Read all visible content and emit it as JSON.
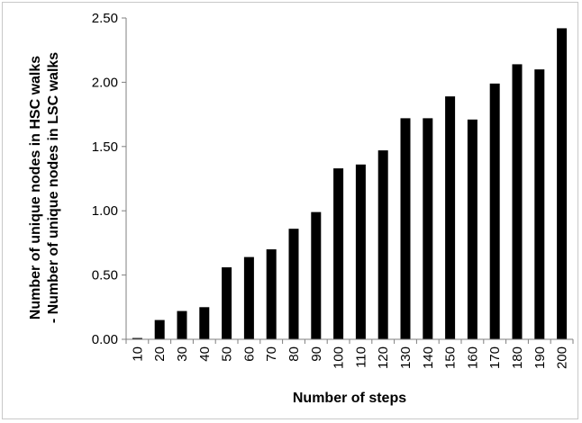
{
  "chart_data": {
    "type": "bar",
    "title": "",
    "xlabel": "Number of steps",
    "ylabel_lines": [
      "Number of unique nodes in HSC walks",
      "- Number of unique nodes in LSC walks"
    ],
    "categories": [
      "10",
      "20",
      "30",
      "40",
      "50",
      "60",
      "70",
      "80",
      "90",
      "100",
      "110",
      "120",
      "130",
      "140",
      "150",
      "160",
      "170",
      "180",
      "190",
      "200"
    ],
    "values": [
      0.01,
      0.15,
      0.22,
      0.25,
      0.56,
      0.64,
      0.7,
      0.86,
      0.99,
      1.33,
      1.36,
      1.47,
      1.72,
      1.72,
      1.89,
      1.71,
      1.99,
      2.14,
      2.1,
      2.42
    ],
    "ylim": [
      0,
      2.5
    ],
    "yticks": [
      0,
      0.5,
      1.0,
      1.5,
      2.0,
      2.5
    ],
    "ytick_labels": [
      "0.00",
      "0.50",
      "1.00",
      "1.50",
      "2.00",
      "2.50"
    ],
    "grid": false,
    "legend": "none",
    "bar_color": "#000000"
  }
}
